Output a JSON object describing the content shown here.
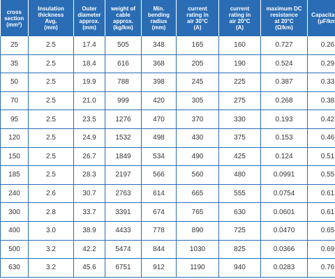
{
  "headers": [
    {
      "lines": [
        "cross",
        "section",
        "(mm²)"
      ]
    },
    {
      "lines": [
        "Insulation",
        "thickness",
        "Avg.",
        "(mm)"
      ]
    },
    {
      "lines": [
        "Outer",
        "diameter",
        "approx.",
        "(mm)"
      ]
    },
    {
      "lines": [
        "weight of",
        "cable",
        "approx.",
        "(kg/km)"
      ]
    },
    {
      "lines": [
        "Min.",
        "bending",
        "radius",
        "(mm)"
      ]
    },
    {
      "lines": [
        "current",
        "rating in",
        "air 30°C",
        "(A)"
      ]
    },
    {
      "lines": [
        "current",
        "rating in",
        "air 20°C",
        "(A)"
      ]
    },
    {
      "lines": [
        "maximum DC",
        "resistance",
        "at 20°C",
        "(Ω/km)"
      ]
    },
    {
      "lines": [
        "Capacitance",
        "(μF/km)"
      ]
    }
  ],
  "rows": [
    [
      "25",
      "2.5",
      "17.4",
      "505",
      "348",
      "165",
      "160",
      "0.727",
      "0.26"
    ],
    [
      "35",
      "2.5",
      "18.4",
      "616",
      "368",
      "205",
      "190",
      "0.524",
      "0.29"
    ],
    [
      "50",
      "2.5",
      "19.9",
      "788",
      "398",
      "245",
      "225",
      "0.387",
      "0.33"
    ],
    [
      "70",
      "2.5",
      "21.0",
      "999",
      "420",
      "305",
      "275",
      "0.268",
      "0.38"
    ],
    [
      "95",
      "2.5",
      "23.5",
      "1276",
      "470",
      "370",
      "330",
      "0.193",
      "0.42"
    ],
    [
      "120",
      "2.5",
      "24.9",
      "1532",
      "498",
      "430",
      "375",
      "0.153",
      "0.46"
    ],
    [
      "150",
      "2.5",
      "26.7",
      "1849",
      "534",
      "490",
      "425",
      "0.124",
      "0.51"
    ],
    [
      "185",
      "2.5",
      "28.3",
      "2197",
      "566",
      "560",
      "480",
      "0.0991",
      "0.55"
    ],
    [
      "240",
      "2.6",
      "30.7",
      "2763",
      "614",
      "665",
      "555",
      "0.0754",
      "0.61"
    ],
    [
      "300",
      "2.8",
      "33.7",
      "3391",
      "674",
      "765",
      "630",
      "0.0601",
      "0.61"
    ],
    [
      "400",
      "3.0",
      "38.9",
      "4433",
      "778",
      "890",
      "725",
      "0.0470",
      "0.65"
    ],
    [
      "500",
      "3.2",
      "42.2",
      "5474",
      "844",
      "1030",
      "825",
      "0.0366",
      "0.69"
    ],
    [
      "630",
      "3.2",
      "45.6",
      "6751",
      "912",
      "1190",
      "940",
      "0.0283",
      "0.76"
    ]
  ]
}
